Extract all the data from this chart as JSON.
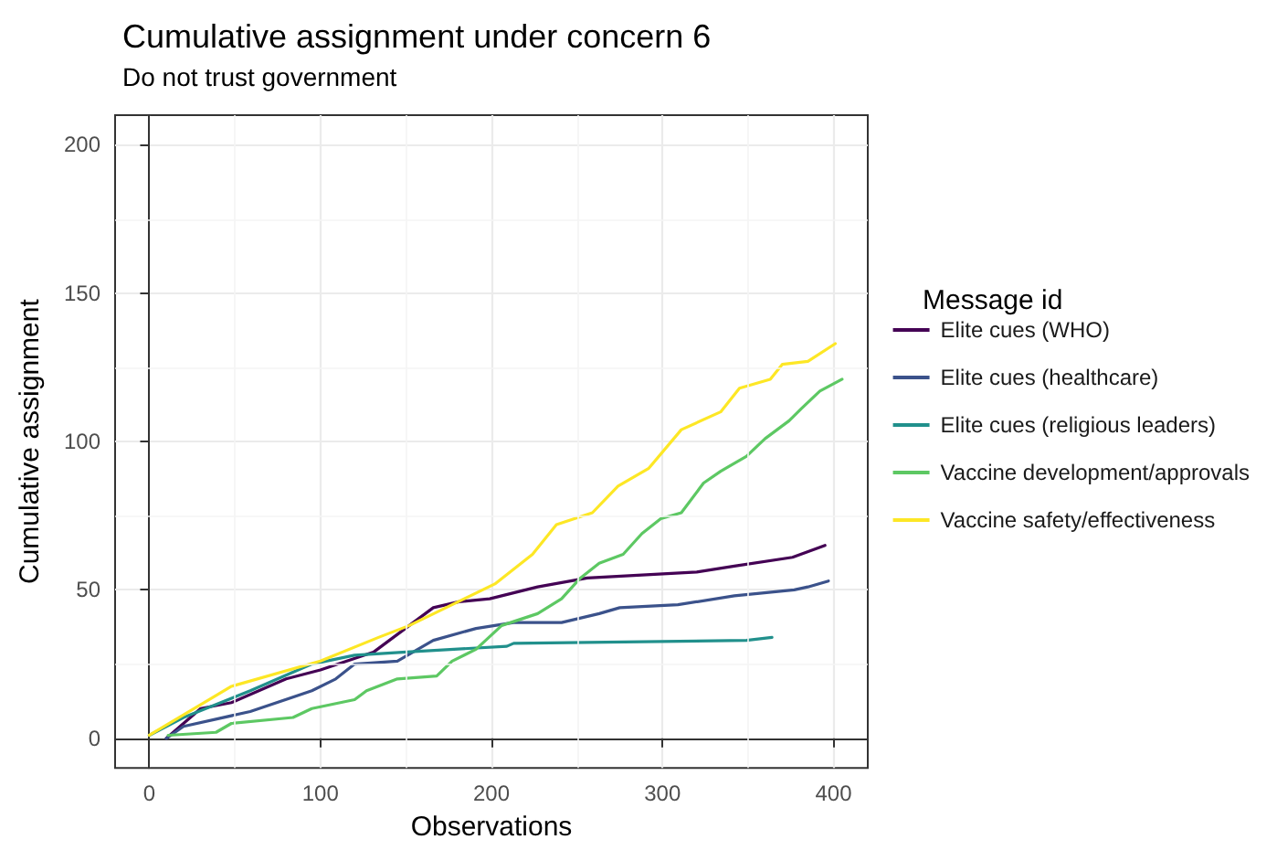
{
  "chart_data": {
    "type": "line",
    "title": "Cumulative assignment under concern 6",
    "subtitle": "Do not trust government",
    "xlabel": "Observations",
    "ylabel": "Cumulative assignment",
    "legend_title": "Message id",
    "xlim": [
      -20,
      420
    ],
    "xticks": [
      0,
      100,
      200,
      300,
      400
    ],
    "ylim": [
      -10,
      210
    ],
    "yticks": [
      0,
      50,
      100,
      150,
      200
    ],
    "grid": true,
    "legend": "right",
    "marker": "none",
    "line_style": "solid",
    "series": [
      {
        "name": "Elite cues (WHO)",
        "color": "#440154",
        "x": [
          10,
          30,
          48,
          80,
          100,
          131,
          152,
          166,
          181,
          199,
          227,
          256,
          320,
          342,
          376,
          395
        ],
        "values": [
          0,
          10,
          12,
          20,
          23,
          29,
          38,
          44,
          46,
          47,
          51,
          54,
          56,
          58,
          61,
          65
        ]
      },
      {
        "name": "Elite cues (healthcare)",
        "color": "#3b528b",
        "x": [
          10,
          20,
          59,
          95,
          109,
          120,
          145,
          166,
          191,
          213,
          241,
          263,
          275,
          309,
          342,
          377,
          385,
          397
        ],
        "values": [
          0,
          4,
          9,
          16,
          20,
          25,
          26,
          33,
          37,
          39,
          39,
          42,
          44,
          45,
          48,
          50,
          51,
          53
        ]
      },
      {
        "name": "Elite cues (religious leaders)",
        "color": "#21908c",
        "x": [
          0,
          20,
          59,
          95,
          120,
          148,
          209,
          213,
          349,
          364
        ],
        "values": [
          1,
          7,
          16,
          25,
          28,
          29,
          31,
          32,
          33,
          34
        ]
      },
      {
        "name": "Vaccine development/approvals",
        "color": "#5dc863",
        "x": [
          11,
          39,
          48,
          84,
          95,
          120,
          127,
          145,
          168,
          177,
          191,
          206,
          227,
          241,
          252,
          263,
          277,
          288,
          299,
          311,
          324,
          334,
          349,
          360,
          374,
          381,
          392,
          405
        ],
        "values": [
          1,
          2,
          5,
          7,
          10,
          13,
          16,
          20,
          21,
          26,
          30,
          38,
          42,
          47,
          54,
          59,
          62,
          69,
          74,
          76,
          86,
          90,
          95,
          101,
          107,
          111,
          117,
          121
        ]
      },
      {
        "name": "Vaccine safety/effectiveness",
        "color": "#fde725",
        "x": [
          0,
          48,
          100,
          134,
          152,
          177,
          202,
          224,
          238,
          259,
          274,
          292,
          311,
          334,
          345,
          363,
          370,
          385,
          401
        ],
        "values": [
          1,
          17.5,
          26,
          34,
          38,
          45,
          52,
          62,
          72,
          76,
          85,
          91,
          104,
          110,
          118,
          121,
          126,
          127,
          133
        ]
      }
    ]
  }
}
